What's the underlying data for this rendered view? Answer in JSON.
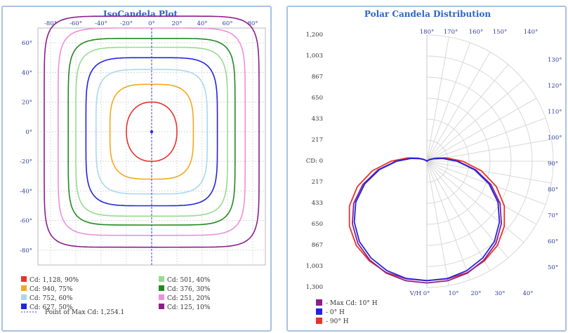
{
  "colors": {
    "red": "#e8322b",
    "orange": "#f6a71c",
    "lightblue": "#a9d8ec",
    "blue": "#2323e0",
    "lightgreen": "#95dc8c",
    "green": "#208a20",
    "pink": "#ee8fd8",
    "purple": "#8b1e8b",
    "axis": "#4040c0",
    "grid": "#d8d8d8"
  },
  "iso": {
    "title": "IsoCandela Plot",
    "x_ticks": [
      "-80°",
      "-60°",
      "-40°",
      "-20°",
      "0°",
      "20°",
      "40°",
      "60°",
      "80°"
    ],
    "y_ticks": [
      "60°",
      "40°",
      "20°",
      "0°",
      "-20°",
      "-40°",
      "-60°",
      "-80°"
    ],
    "legend": [
      {
        "label": "Cd: 1,128, 90%",
        "color": "#e8322b"
      },
      {
        "label": "Cd: 940, 75%",
        "color": "#f6a71c"
      },
      {
        "label": "Cd: 752, 60%",
        "color": "#a9d8ec"
      },
      {
        "label": "Cd: 627, 50%",
        "color": "#2323e0"
      },
      {
        "label": "Cd: 501, 40%",
        "color": "#95dc8c"
      },
      {
        "label": "Cd: 376, 30%",
        "color": "#208a20"
      },
      {
        "label": "Cd: 251, 20%",
        "color": "#ee8fd8"
      },
      {
        "label": "Cd: 125, 10%",
        "color": "#8b1e8b"
      }
    ],
    "max_point_label": "Point of Max Cd: 1,254.1"
  },
  "polar": {
    "title": "Polar Candela Distribution",
    "cd_ticks": [
      "1,200",
      "1,003",
      "867",
      "650",
      "433",
      "217",
      "CD: 0",
      "217",
      "433",
      "650",
      "867",
      "1,003",
      "1,300"
    ],
    "top_angle_labels": [
      "180°",
      "170°",
      "160°",
      "150°",
      "140°"
    ],
    "right_angle_labels": [
      "130°",
      "120°",
      "110°",
      "100°",
      "90°",
      "80°",
      "70°",
      "60°",
      "50°"
    ],
    "bottom_angle_labels": [
      "V/H 0°",
      "10°",
      "20°",
      "30°",
      "40°"
    ],
    "legend": [
      {
        "label": "- Max Cd: 10° H",
        "color": "#8b1e8b"
      },
      {
        "label": "- 0° H",
        "color": "#2323e0"
      },
      {
        "label": "- 90° H",
        "color": "#e8322b"
      }
    ]
  },
  "chart_data": [
    {
      "type": "contour",
      "title": "IsoCandela Plot",
      "xlim": [
        -90,
        90
      ],
      "ylim": [
        -90,
        70
      ],
      "x_unit": "degrees",
      "y_unit": "degrees",
      "levels": [
        {
          "label": "Cd: 1,128, 90%",
          "candela": 1128,
          "percent": 90,
          "half_width": 20,
          "half_height": 20,
          "squareness": 2.2
        },
        {
          "label": "Cd: 940, 75%",
          "candela": 940,
          "percent": 75,
          "half_width": 33,
          "half_height": 32,
          "squareness": 3.5
        },
        {
          "label": "Cd: 752, 60%",
          "candela": 752,
          "percent": 60,
          "half_width": 44,
          "half_height": 42,
          "squareness": 4.5
        },
        {
          "label": "Cd: 627, 50%",
          "candela": 627,
          "percent": 50,
          "half_width": 52,
          "half_height": 50,
          "squareness": 5
        },
        {
          "label": "Cd: 501, 40%",
          "candela": 501,
          "percent": 40,
          "half_width": 60,
          "half_height": 57,
          "squareness": 6
        },
        {
          "label": "Cd: 376, 30%",
          "candela": 376,
          "percent": 30,
          "half_width": 66,
          "half_height": 63,
          "squareness": 6.5
        },
        {
          "label": "Cd: 251, 20%",
          "candela": 251,
          "percent": 20,
          "half_width": 74,
          "half_height": 70,
          "squareness": 7
        },
        {
          "label": "Cd: 125, 10%",
          "candela": 125,
          "percent": 10,
          "half_width": 85,
          "half_height": 78,
          "squareness": 8
        }
      ],
      "max_point": {
        "x": 0,
        "y": 0,
        "candela": 1254.1
      }
    },
    {
      "type": "polar",
      "title": "Polar Candela Distribution",
      "rlim": [
        0,
        1300
      ],
      "series": [
        {
          "name": "- Max Cd: 10° H",
          "angles": [
            0,
            10,
            20,
            30,
            40,
            50,
            60,
            70,
            80,
            90,
            100,
            110,
            120,
            130,
            140,
            150,
            160,
            170,
            180
          ],
          "candela": [
            1254,
            1250,
            1225,
            1175,
            1105,
            1000,
            870,
            700,
            510,
            320,
            170,
            80,
            35,
            12,
            4,
            1,
            0,
            0,
            0
          ]
        },
        {
          "name": "- 0° H",
          "angles": [
            0,
            10,
            20,
            30,
            40,
            50,
            60,
            70,
            80,
            90,
            100,
            110,
            120,
            130,
            140,
            150,
            160,
            170,
            180
          ],
          "candela": [
            1230,
            1226,
            1200,
            1150,
            1080,
            975,
            845,
            680,
            495,
            310,
            165,
            78,
            34,
            12,
            4,
            1,
            0,
            0,
            0
          ]
        },
        {
          "name": "- 90° H",
          "angles": [
            0,
            10,
            20,
            30,
            40,
            50,
            60,
            70,
            80,
            90,
            100,
            110,
            120,
            130,
            140,
            150,
            160,
            170,
            180
          ],
          "candela": [
            1230,
            1230,
            1220,
            1185,
            1130,
            1040,
            920,
            760,
            570,
            370,
            200,
            95,
            42,
            15,
            5,
            1,
            0,
            0,
            0
          ]
        }
      ]
    }
  ]
}
